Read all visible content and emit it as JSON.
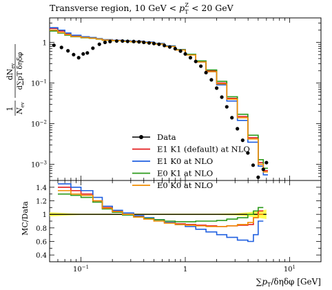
{
  "chart_data": [
    {
      "type": "line",
      "panel": "main",
      "title": "Transverse region, 10 GeV < pT^Z < 20 GeV",
      "title_parts": {
        "lead": "Transverse region, 10 GeV < ",
        "var": "p",
        "sub": "T",
        "sup": "Z",
        "tail": " < 20 GeV"
      },
      "ylabel": "1/N_ev dN_ev / d∑pT dη dφ",
      "ylabel_parts": {
        "one": "1",
        "num": "dN",
        "num_sub": "ev",
        "den_n": "N",
        "den_n_sub": "ev",
        "den_rest": "d∑pT δηδφ"
      },
      "x_scale": "log",
      "y_scale": "log",
      "xlim": [
        0.05,
        20
      ],
      "ylim": [
        0.0004,
        4
      ],
      "y_ticks": [
        {
          "value": 1,
          "label": "1"
        },
        {
          "value": 0.1,
          "label": "10^-1"
        },
        {
          "value": 0.01,
          "label": "10^-2"
        },
        {
          "value": 0.001,
          "label": "10^-3"
        }
      ],
      "legend_position": "bottom-center",
      "legend": [
        "Data",
        "E1 K1 (default) at NLO",
        "E1 K0 at NLO",
        "E0 K1 at NLO",
        "E0 K0 at NLO"
      ],
      "data_points": {
        "name": "Data",
        "x": [
          0.055,
          0.065,
          0.075,
          0.085,
          0.095,
          0.105,
          0.115,
          0.13,
          0.15,
          0.17,
          0.19,
          0.22,
          0.25,
          0.28,
          0.32,
          0.36,
          0.4,
          0.45,
          0.5,
          0.56,
          0.63,
          0.71,
          0.8,
          0.9,
          1.0,
          1.12,
          1.26,
          1.41,
          1.58,
          1.78,
          2.0,
          2.24,
          2.5,
          2.8,
          3.16,
          3.55,
          3.98,
          4.47,
          5.0,
          5.6,
          6.0
        ],
        "y": [
          0.85,
          0.75,
          0.62,
          0.5,
          0.42,
          0.52,
          0.55,
          0.72,
          0.9,
          1.0,
          1.05,
          1.08,
          1.08,
          1.06,
          1.05,
          1.03,
          1.0,
          0.97,
          0.94,
          0.9,
          0.84,
          0.77,
          0.7,
          0.61,
          0.52,
          0.42,
          0.34,
          0.26,
          0.18,
          0.12,
          0.075,
          0.045,
          0.026,
          0.014,
          0.0075,
          0.0039,
          0.0019,
          0.00095,
          0.00048,
          0.00075,
          0.0011
        ]
      },
      "series": [
        {
          "name": "E1 K1 (default) at NLO",
          "color": "#e41a1c",
          "x": [
            0.05,
            0.06,
            0.07,
            0.08,
            0.1,
            0.12,
            0.14,
            0.16,
            0.2,
            0.25,
            0.3,
            0.4,
            0.5,
            0.63,
            0.8,
            1.0,
            1.26,
            1.58,
            2.0,
            2.5,
            3.16,
            3.98,
            5.0,
            5.6,
            6.2
          ],
          "y": [
            2.2,
            1.9,
            1.6,
            1.45,
            1.35,
            1.3,
            1.22,
            1.15,
            1.12,
            1.08,
            1.05,
            1.0,
            0.92,
            0.8,
            0.66,
            0.5,
            0.34,
            0.2,
            0.1,
            0.042,
            0.015,
            0.0045,
            0.0011,
            0.0007,
            0.0005
          ]
        },
        {
          "name": "E1 K0 at NLO",
          "color": "#1f5fe0",
          "x": [
            0.05,
            0.06,
            0.07,
            0.08,
            0.1,
            0.12,
            0.14,
            0.16,
            0.2,
            0.25,
            0.3,
            0.4,
            0.5,
            0.63,
            0.8,
            1.0,
            1.26,
            1.58,
            2.0,
            2.5,
            3.16,
            3.98,
            5.0,
            5.6,
            6.2
          ],
          "y": [
            2.3,
            2.0,
            1.7,
            1.5,
            1.38,
            1.32,
            1.24,
            1.17,
            1.13,
            1.1,
            1.07,
            1.02,
            0.94,
            0.82,
            0.67,
            0.5,
            0.33,
            0.19,
            0.09,
            0.036,
            0.012,
            0.0035,
            0.0009,
            0.00055,
            0.0004
          ]
        },
        {
          "name": "E0 K1 at NLO",
          "color": "#2a9a1a",
          "x": [
            0.05,
            0.06,
            0.07,
            0.08,
            0.1,
            0.12,
            0.14,
            0.16,
            0.2,
            0.25,
            0.3,
            0.4,
            0.5,
            0.63,
            0.8,
            1.0,
            1.26,
            1.58,
            2.0,
            2.5,
            3.16,
            3.98,
            5.0,
            5.6,
            6.2
          ],
          "y": [
            1.9,
            1.7,
            1.5,
            1.38,
            1.3,
            1.26,
            1.2,
            1.13,
            1.1,
            1.06,
            1.03,
            0.98,
            0.91,
            0.8,
            0.66,
            0.51,
            0.35,
            0.21,
            0.11,
            0.046,
            0.017,
            0.0052,
            0.0013,
            0.0008,
            0.0006
          ]
        },
        {
          "name": "E0 K0 at NLO",
          "color": "#f08c00",
          "x": [
            0.05,
            0.06,
            0.07,
            0.08,
            0.1,
            0.12,
            0.14,
            0.16,
            0.2,
            0.25,
            0.3,
            0.4,
            0.5,
            0.63,
            0.8,
            1.0,
            1.26,
            1.58,
            2.0,
            2.5,
            3.16,
            3.98,
            5.0,
            5.6,
            6.2
          ],
          "y": [
            2.0,
            1.75,
            1.55,
            1.4,
            1.32,
            1.27,
            1.21,
            1.14,
            1.11,
            1.07,
            1.04,
            0.99,
            0.91,
            0.79,
            0.65,
            0.49,
            0.33,
            0.19,
            0.095,
            0.04,
            0.014,
            0.0042,
            0.001,
            0.00065,
            0.00045
          ]
        }
      ]
    },
    {
      "type": "line",
      "panel": "ratio",
      "ylabel": "MC/Data",
      "xlabel": "∑pT/δηδφ [GeV]",
      "xlabel_parts": {
        "lead": "∑",
        "var": "p",
        "sub": "T",
        "tail": "/δηδφ [GeV]"
      },
      "x_scale": "log",
      "xlim": [
        0.05,
        20
      ],
      "ylim": [
        0.3,
        1.5
      ],
      "y_ticks": [
        0.4,
        0.6,
        0.8,
        1.0,
        1.2,
        1.4
      ],
      "y_tick_labels": [
        "0.4",
        "0.6",
        "0.8",
        "1",
        "1.2",
        "1.4"
      ],
      "x_ticks": [
        {
          "value": 0.1,
          "label": "10^-1"
        },
        {
          "value": 1,
          "label": "1"
        },
        {
          "value": 10,
          "label": "10^1"
        }
      ],
      "data_uncertainty_band": {
        "color": "#ffff33",
        "x": [
          0.05,
          0.06,
          0.08,
          0.1,
          0.2,
          0.5,
          1.0,
          2.0,
          3.0,
          4.0,
          5.0,
          6.0
        ],
        "half_width": [
          0.03,
          0.025,
          0.015,
          0.01,
          0.01,
          0.01,
          0.01,
          0.01,
          0.015,
          0.03,
          0.05,
          0.07
        ]
      },
      "series": [
        {
          "name": "E1 K1 (default) at NLO",
          "color": "#e41a1c",
          "x": [
            0.06,
            0.08,
            0.1,
            0.13,
            0.16,
            0.2,
            0.25,
            0.32,
            0.4,
            0.5,
            0.63,
            0.8,
            1.0,
            1.26,
            1.58,
            2.0,
            2.5,
            3.16,
            3.98,
            4.5,
            5.0,
            5.6
          ],
          "y": [
            1.4,
            1.35,
            1.3,
            1.2,
            1.1,
            1.05,
            1.0,
            0.97,
            0.94,
            0.92,
            0.88,
            0.86,
            0.85,
            0.84,
            0.83,
            0.82,
            0.83,
            0.84,
            0.85,
            0.95,
            1.05,
            1.1
          ]
        },
        {
          "name": "E1 K0 at NLO",
          "color": "#1f5fe0",
          "x": [
            0.06,
            0.08,
            0.1,
            0.13,
            0.16,
            0.2,
            0.25,
            0.32,
            0.4,
            0.5,
            0.63,
            0.8,
            1.0,
            1.26,
            1.58,
            2.0,
            2.5,
            3.16,
            3.98,
            4.5,
            5.0,
            5.6
          ],
          "y": [
            1.45,
            1.4,
            1.35,
            1.25,
            1.12,
            1.06,
            1.02,
            0.98,
            0.95,
            0.92,
            0.88,
            0.85,
            0.82,
            0.78,
            0.74,
            0.7,
            0.66,
            0.62,
            0.6,
            0.7,
            0.9,
            1.0
          ]
        },
        {
          "name": "E0 K1 at NLO",
          "color": "#2a9a1a",
          "x": [
            0.06,
            0.08,
            0.1,
            0.13,
            0.16,
            0.2,
            0.25,
            0.32,
            0.4,
            0.5,
            0.63,
            0.8,
            1.0,
            1.26,
            1.58,
            2.0,
            2.5,
            3.16,
            3.98,
            4.5,
            5.0,
            5.6
          ],
          "y": [
            1.3,
            1.28,
            1.25,
            1.18,
            1.08,
            1.03,
            0.99,
            0.96,
            0.94,
            0.92,
            0.9,
            0.89,
            0.89,
            0.9,
            0.9,
            0.91,
            0.93,
            0.95,
            1.0,
            1.05,
            1.1,
            1.2
          ]
        },
        {
          "name": "E0 K0 at NLO",
          "color": "#f08c00",
          "x": [
            0.06,
            0.08,
            0.1,
            0.13,
            0.16,
            0.2,
            0.25,
            0.32,
            0.4,
            0.5,
            0.63,
            0.8,
            1.0,
            1.26,
            1.58,
            2.0,
            2.5,
            3.16,
            3.98,
            4.5,
            5.0,
            5.6
          ],
          "y": [
            1.35,
            1.3,
            1.28,
            1.2,
            1.09,
            1.04,
            1.0,
            0.96,
            0.93,
            0.9,
            0.87,
            0.85,
            0.84,
            0.83,
            0.82,
            0.82,
            0.83,
            0.85,
            0.88,
            0.95,
            1.0,
            1.05
          ]
        }
      ]
    }
  ]
}
